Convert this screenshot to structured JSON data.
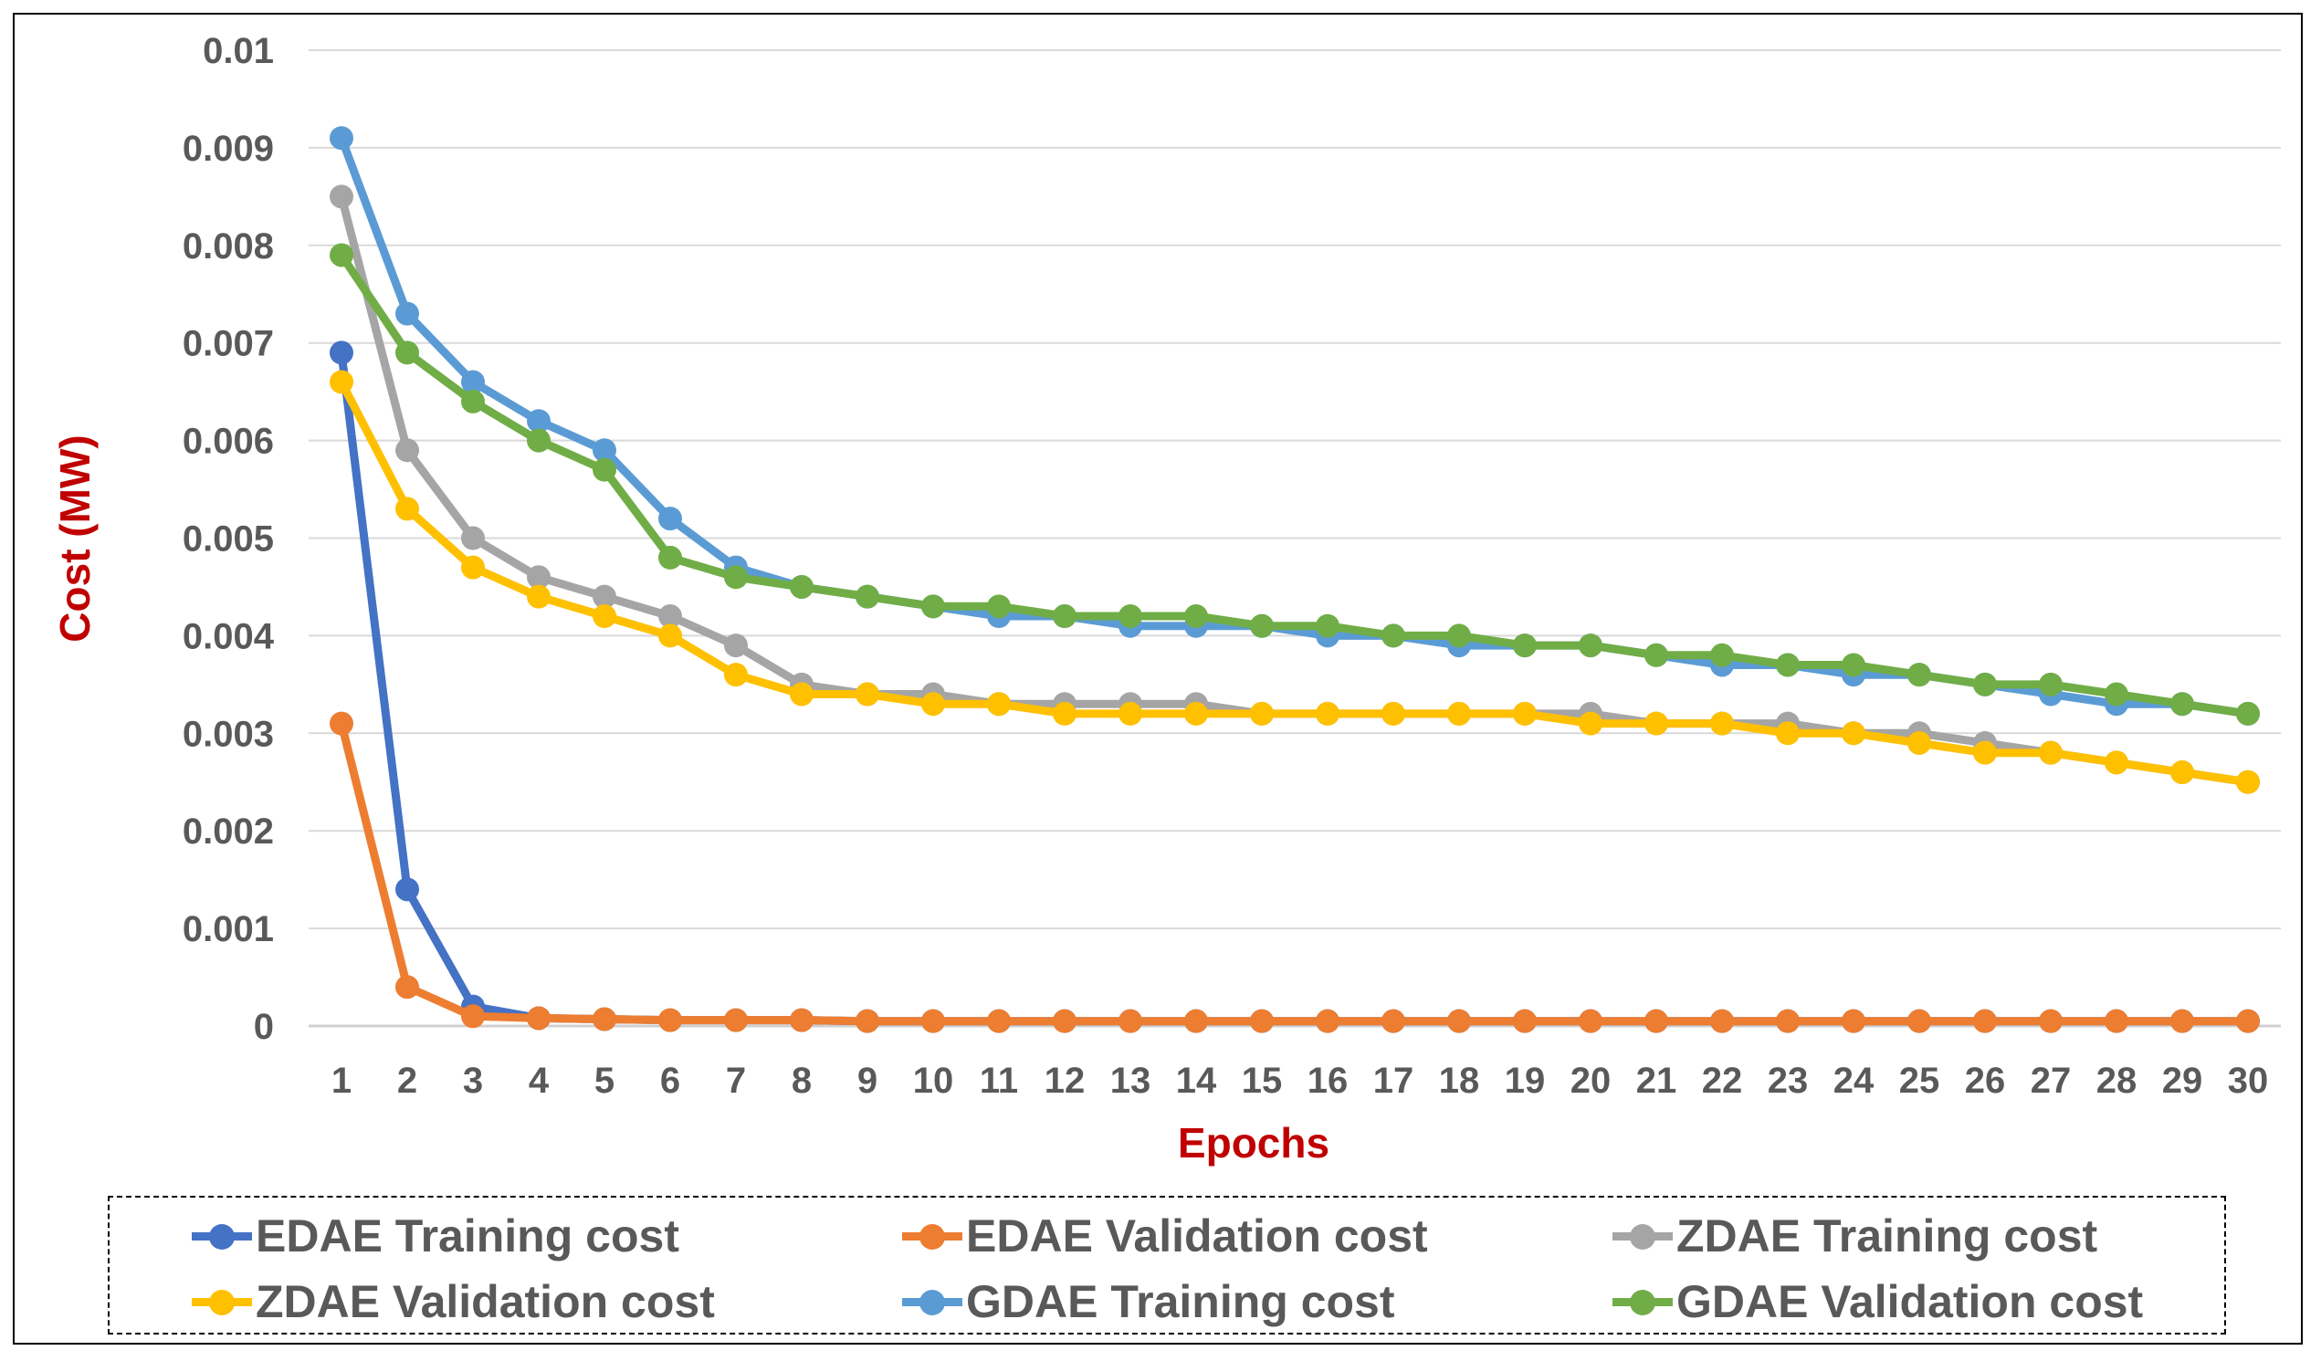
{
  "chart_data": {
    "type": "line",
    "title": "",
    "xlabel": "Epochs",
    "ylabel": "Cost  (MW)",
    "x": [
      1,
      2,
      3,
      4,
      5,
      6,
      7,
      8,
      9,
      10,
      11,
      12,
      13,
      14,
      15,
      16,
      17,
      18,
      19,
      20,
      21,
      22,
      23,
      24,
      25,
      26,
      27,
      28,
      29,
      30
    ],
    "ylim": [
      0,
      0.01
    ],
    "yticks": [
      0,
      0.001,
      0.002,
      0.003,
      0.004,
      0.005,
      0.006,
      0.007,
      0.008,
      0.009,
      0.01
    ],
    "ytick_labels": [
      "0",
      "0.001",
      "0.002",
      "0.003",
      "0.004",
      "0.005",
      "0.006",
      "0.007",
      "0.008",
      "0.009",
      "0.01"
    ],
    "grid": true,
    "legend_position": "bottom",
    "series": [
      {
        "name": "EDAE Training cost",
        "color": "#4472c4",
        "values": [
          0.0069,
          0.0014,
          0.0002,
          8e-05,
          7e-05,
          6e-05,
          6e-05,
          6e-05,
          5e-05,
          5e-05,
          5e-05,
          5e-05,
          5e-05,
          5e-05,
          5e-05,
          5e-05,
          5e-05,
          5e-05,
          5e-05,
          5e-05,
          5e-05,
          5e-05,
          5e-05,
          5e-05,
          5e-05,
          5e-05,
          5e-05,
          5e-05,
          5e-05,
          5e-05
        ]
      },
      {
        "name": "EDAE Validation cost",
        "color": "#ed7d31",
        "values": [
          0.0031,
          0.0004,
          0.0001,
          8e-05,
          7e-05,
          6e-05,
          6e-05,
          6e-05,
          5e-05,
          5e-05,
          5e-05,
          5e-05,
          5e-05,
          5e-05,
          5e-05,
          5e-05,
          5e-05,
          5e-05,
          5e-05,
          5e-05,
          5e-05,
          5e-05,
          5e-05,
          5e-05,
          5e-05,
          5e-05,
          5e-05,
          5e-05,
          5e-05,
          5e-05
        ]
      },
      {
        "name": "ZDAE Training cost",
        "color": "#a5a5a5",
        "values": [
          0.0085,
          0.0059,
          0.005,
          0.0046,
          0.0044,
          0.0042,
          0.0039,
          0.0035,
          0.0034,
          0.0034,
          0.0033,
          0.0033,
          0.0033,
          0.0033,
          0.0032,
          0.0032,
          0.0032,
          0.0032,
          0.0032,
          0.0032,
          0.0031,
          0.0031,
          0.0031,
          0.003,
          0.003,
          0.0029,
          0.0028,
          0.0027,
          0.0026,
          0.0025
        ]
      },
      {
        "name": "ZDAE Validation cost",
        "color": "#ffc000",
        "values": [
          0.0066,
          0.0053,
          0.0047,
          0.0044,
          0.0042,
          0.004,
          0.0036,
          0.0034,
          0.0034,
          0.0033,
          0.0033,
          0.0032,
          0.0032,
          0.0032,
          0.0032,
          0.0032,
          0.0032,
          0.0032,
          0.0032,
          0.0031,
          0.0031,
          0.0031,
          0.003,
          0.003,
          0.0029,
          0.0028,
          0.0028,
          0.0027,
          0.0026,
          0.0025
        ]
      },
      {
        "name": "GDAE Training cost",
        "color": "#5b9bd5",
        "values": [
          0.0091,
          0.0073,
          0.0066,
          0.0062,
          0.0059,
          0.0052,
          0.0047,
          0.0045,
          0.0044,
          0.0043,
          0.0042,
          0.0042,
          0.0041,
          0.0041,
          0.0041,
          0.004,
          0.004,
          0.0039,
          0.0039,
          0.0039,
          0.0038,
          0.0037,
          0.0037,
          0.0036,
          0.0036,
          0.0035,
          0.0034,
          0.0033,
          0.0033,
          0.0032
        ]
      },
      {
        "name": "GDAE Validation cost",
        "color": "#70ad47",
        "values": [
          0.0079,
          0.0069,
          0.0064,
          0.006,
          0.0057,
          0.0048,
          0.0046,
          0.0045,
          0.0044,
          0.0043,
          0.0043,
          0.0042,
          0.0042,
          0.0042,
          0.0041,
          0.0041,
          0.004,
          0.004,
          0.0039,
          0.0039,
          0.0038,
          0.0038,
          0.0037,
          0.0037,
          0.0036,
          0.0035,
          0.0035,
          0.0034,
          0.0033,
          0.0032
        ]
      }
    ]
  }
}
